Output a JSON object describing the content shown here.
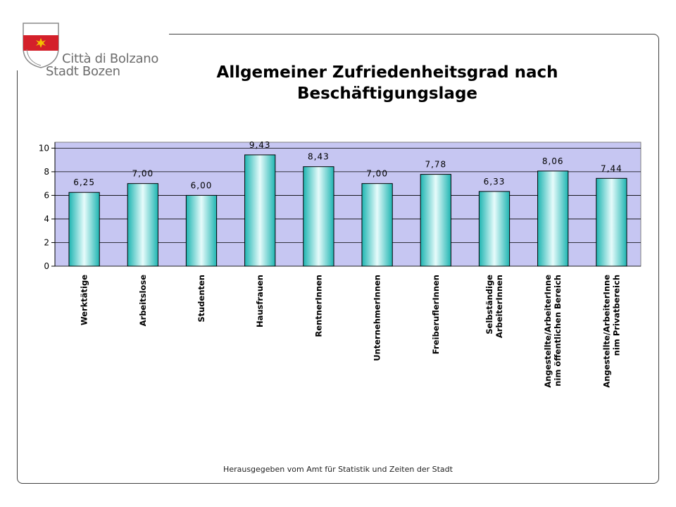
{
  "logo": {
    "line1": "Città di Bolzano",
    "line2": "Stadt Bozen"
  },
  "colors": {
    "plot_background": "#c6c6f2",
    "bar_edge": "#1fb5b2",
    "bar_center": "#e6fbfb",
    "shield_red": "#d4202a"
  },
  "chart_data": {
    "type": "bar",
    "title": "Allgemeiner Zufriedenheitsgrad nach Beschäftigungslage",
    "categories": [
      "Werktätige",
      "Arbeitslose",
      "Studenten",
      "Hausfrauen",
      "RentnerInnen",
      "UnternehmerInnen",
      "FreiberuflerInnen",
      "Selbständige ArbeiterInnen",
      "Angestellte/ArbeiterInne nim öffentlichen Bereich",
      "Angestellte/ArbeiterInne nim Privatbereich"
    ],
    "category_lines": [
      [
        "Werktätige"
      ],
      [
        "Arbeitslose"
      ],
      [
        "Studenten"
      ],
      [
        "Hausfrauen"
      ],
      [
        "RentnerInnen"
      ],
      [
        "UnternehmerInnen"
      ],
      [
        "FreiberuflerInnen"
      ],
      [
        "Selbständige",
        "ArbeiterInnen"
      ],
      [
        "Angestellte/ArbeiterInne",
        "nim öffentlichen Bereich"
      ],
      [
        "Angestellte/ArbeiterInne",
        "nim Privatbereich"
      ]
    ],
    "values": [
      6.25,
      7.0,
      6.0,
      9.43,
      8.43,
      7.0,
      7.78,
      6.33,
      8.06,
      7.44
    ],
    "value_labels": [
      "6,25",
      "7,00",
      "6,00",
      "9,43",
      "8,43",
      "7,00",
      "7,78",
      "6,33",
      "8,06",
      "7,44"
    ],
    "ylim": [
      0,
      10.5
    ],
    "yticks": [
      0,
      2,
      4,
      6,
      8,
      10
    ],
    "ytick_labels": [
      "0",
      "2",
      "4",
      "6",
      "8",
      "10"
    ],
    "grid": true,
    "legend": "none"
  },
  "footer": "Herausgegeben vom Amt für Statistik und Zeiten der Stadt"
}
